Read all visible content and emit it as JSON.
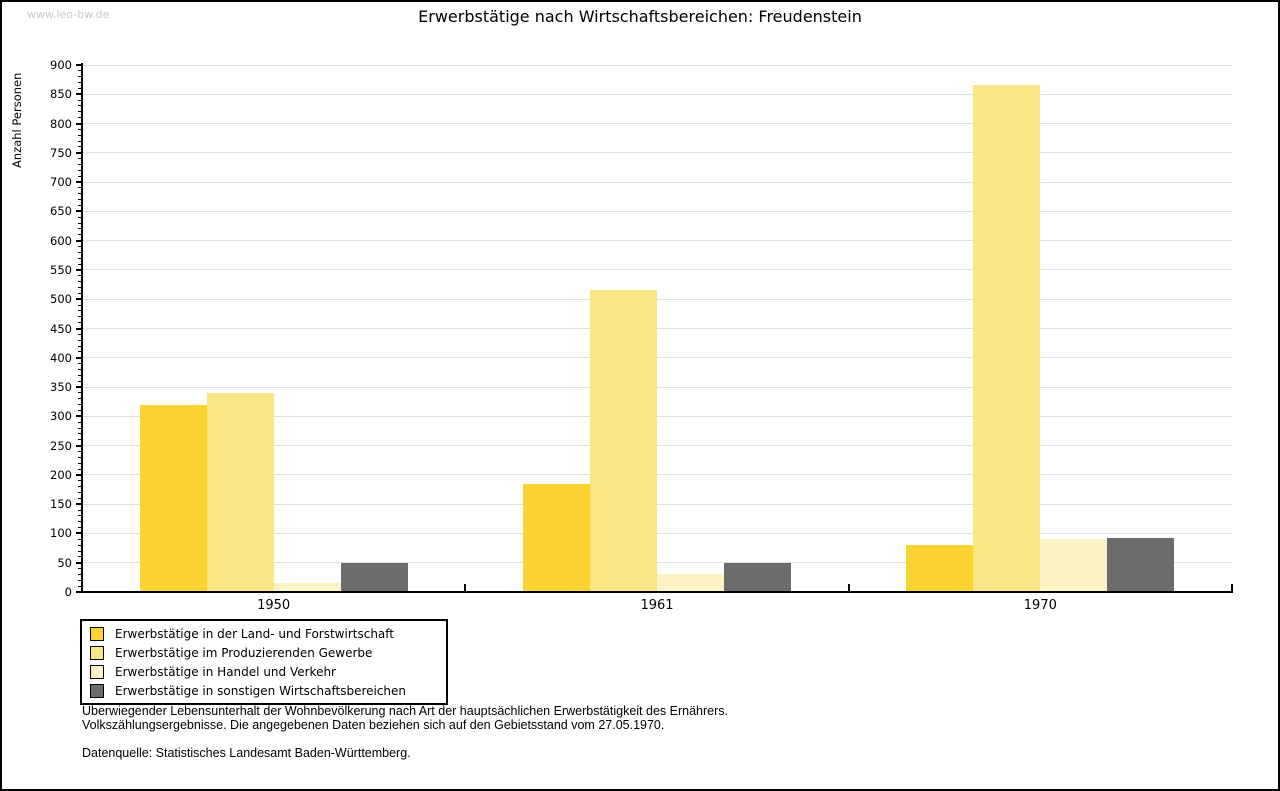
{
  "page": {
    "watermark": "www.leo-bw.de"
  },
  "chart_data": {
    "type": "bar",
    "title": "Erwerbstätige nach Wirtschaftsbereichen: Freudenstein",
    "ylabel": "Anzahl Personen",
    "xlabel": "",
    "categories": [
      "1950",
      "1961",
      "1970"
    ],
    "series": [
      {
        "name": "Erwerbstätige in der Land- und Forstwirtschaft",
        "color": "#FCD330",
        "values": [
          320,
          185,
          80
        ]
      },
      {
        "name": "Erwerbstätige im Produzierenden Gewerbe",
        "color": "#FAE584",
        "values": [
          340,
          515,
          865
        ]
      },
      {
        "name": "Erwerbstätige in Handel und Verkehr",
        "color": "#FBF3C4",
        "values": [
          15,
          30,
          90
        ]
      },
      {
        "name": "Erwerbstätige in sonstigen Wirtschaftsbereichen",
        "color": "#6C6C6C",
        "values": [
          50,
          50,
          93
        ]
      }
    ],
    "ylim": [
      0,
      900
    ],
    "y_ticks": [
      0,
      50,
      100,
      150,
      200,
      250,
      300,
      350,
      400,
      450,
      500,
      550,
      600,
      650,
      700,
      750,
      800,
      850,
      900
    ],
    "y_minor_step": 10,
    "grid": true,
    "legend_position": "bottom-left",
    "gridline_color": "#e0e0e0"
  },
  "footer": {
    "line1": "Überwiegender Lebensunterhalt der Wohnbevölkerung nach Art der hauptsächlichen Erwerbstätigkeit des Ernährers.",
    "line2": "Volkszählungsergebnisse. Die angegebenen Daten beziehen sich auf den Gebietsstand vom 27.05.1970.",
    "source": "Datenquelle: Statistisches Landesamt Baden-Württemberg."
  }
}
